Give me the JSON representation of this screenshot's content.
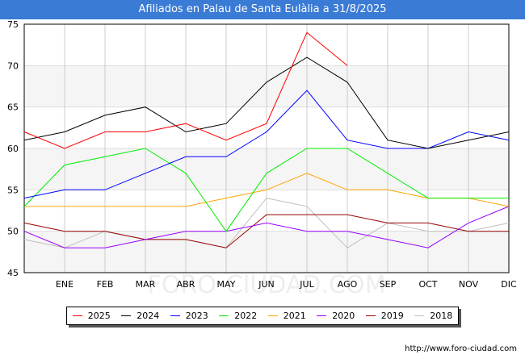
{
  "title": "Afiliados en Palau de Santa Eulàlia a 31/8/2025",
  "watermark": "FORO-CIUDAD.COM",
  "footer_url": "http://www.foro-ciudad.com",
  "chart_data": {
    "type": "line",
    "categories": [
      "",
      "ENE",
      "FEB",
      "MAR",
      "ABR",
      "MAY",
      "JUN",
      "JUL",
      "AGO",
      "SEP",
      "OCT",
      "NOV",
      "DIC"
    ],
    "ylim": [
      45,
      75
    ],
    "yticks": [
      45,
      50,
      55,
      60,
      65,
      70,
      75
    ],
    "grid": true,
    "legend_position": "bottom",
    "series": [
      {
        "name": "2025",
        "color": "#ff0000",
        "values": [
          62,
          60,
          62,
          62,
          63,
          61,
          63,
          74,
          70,
          null,
          null,
          null,
          null
        ]
      },
      {
        "name": "2024",
        "color": "#000000",
        "values": [
          61,
          62,
          64,
          65,
          62,
          63,
          68,
          71,
          68,
          61,
          60,
          61,
          62
        ]
      },
      {
        "name": "2023",
        "color": "#0000ff",
        "values": [
          54,
          55,
          55,
          57,
          59,
          59,
          62,
          67,
          61,
          60,
          60,
          62,
          61
        ]
      },
      {
        "name": "2022",
        "color": "#00ee00",
        "values": [
          53,
          58,
          59,
          60,
          57,
          50,
          57,
          60,
          60,
          57,
          54,
          54,
          54
        ]
      },
      {
        "name": "2021",
        "color": "#ffa500",
        "values": [
          53,
          53,
          53,
          53,
          53,
          54,
          55,
          57,
          55,
          55,
          54,
          54,
          53
        ]
      },
      {
        "name": "2020",
        "color": "#9900ff",
        "values": [
          50,
          48,
          48,
          49,
          50,
          50,
          51,
          50,
          50,
          49,
          48,
          51,
          53
        ]
      },
      {
        "name": "2019",
        "color": "#990000",
        "values": [
          51,
          50,
          50,
          49,
          49,
          48,
          52,
          52,
          52,
          51,
          51,
          50,
          50
        ]
      },
      {
        "name": "2018",
        "color": "#c0c0c0",
        "values": [
          49,
          48,
          50,
          49,
          49,
          48,
          54,
          53,
          48,
          51,
          50,
          50,
          51
        ]
      }
    ]
  }
}
